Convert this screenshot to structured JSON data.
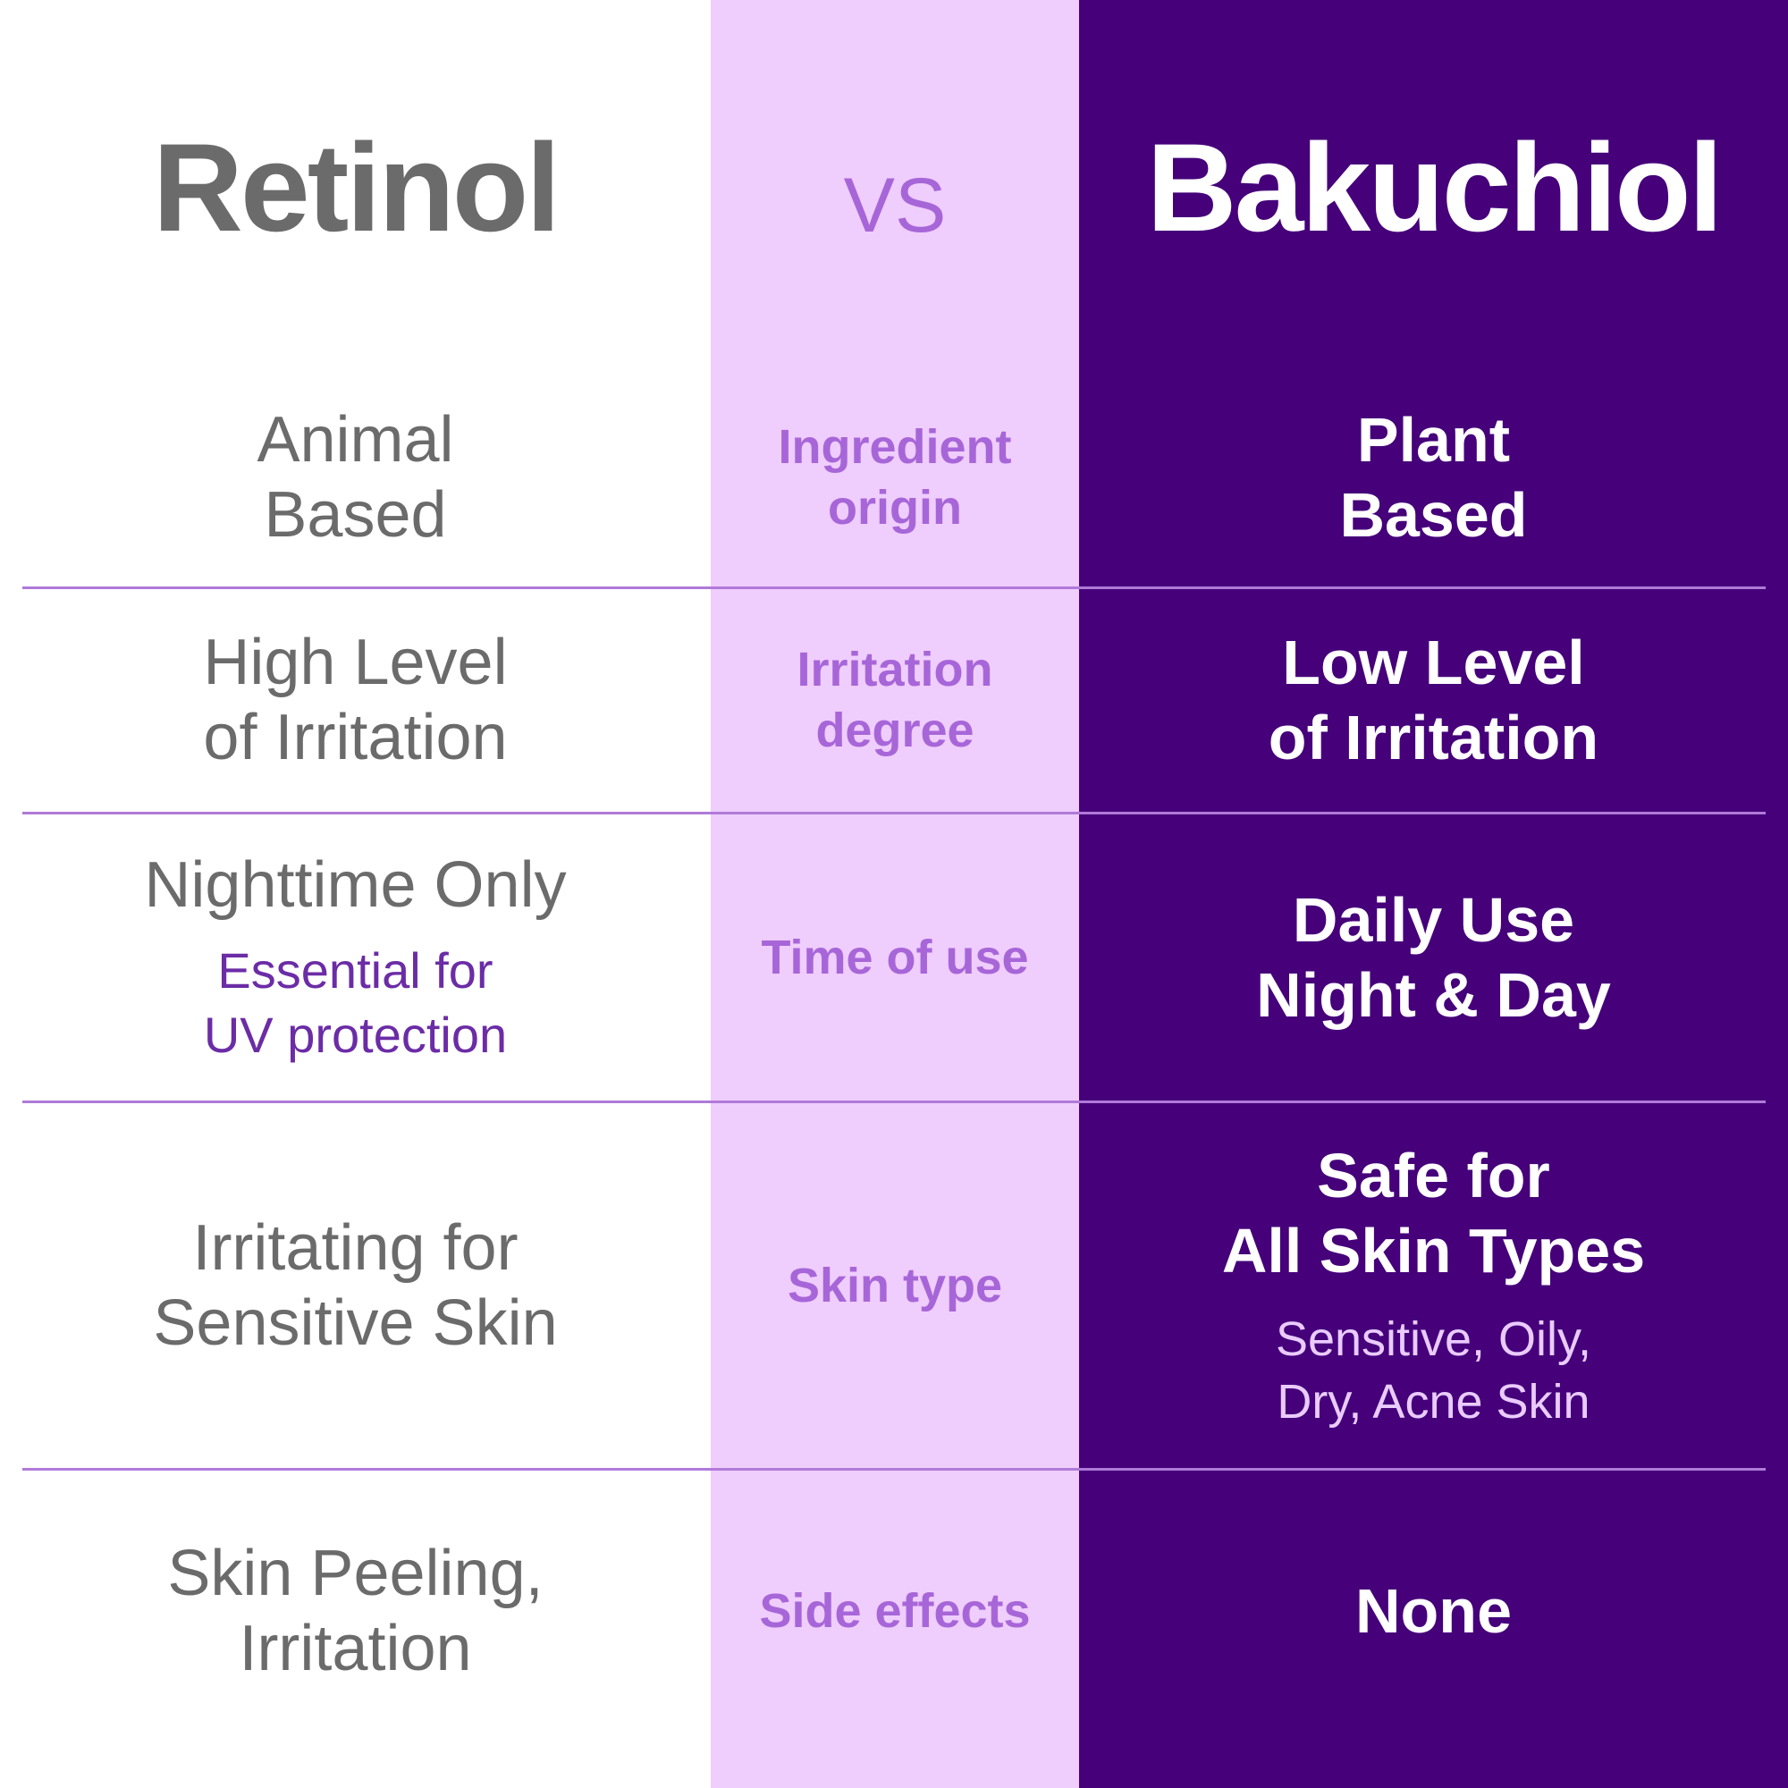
{
  "header": {
    "left": "Retinol",
    "middle": "VS",
    "right": "Bakuchiol"
  },
  "colors": {
    "purple": "#45007a",
    "pink": "#efcdfd",
    "label": "#a766d8",
    "grey_text": "#6b6b6b"
  },
  "rows": [
    {
      "left": [
        "Animal",
        "Based"
      ],
      "left_sub": [],
      "middle": [
        "Ingredient",
        "origin"
      ],
      "right": [
        "Plant",
        "Based"
      ],
      "right_sub": []
    },
    {
      "left": [
        "High Level",
        "of Irritation"
      ],
      "left_sub": [],
      "middle": [
        "Irritation",
        "degree"
      ],
      "right": [
        "Low Level",
        "of Irritation"
      ],
      "right_sub": []
    },
    {
      "left": [
        "Nighttime Only"
      ],
      "left_sub": [
        "Essential for",
        "UV protection"
      ],
      "middle": [
        "Time of use"
      ],
      "right": [
        "Daily Use",
        "Night & Day"
      ],
      "right_sub": []
    },
    {
      "left": [
        "Irritating for",
        "Sensitive Skin"
      ],
      "left_sub": [],
      "middle": [
        "Skin type"
      ],
      "right": [
        "Safe for",
        "All Skin Types"
      ],
      "right_sub": [
        "Sensitive, Oily,",
        "Dry, Acne Skin"
      ]
    },
    {
      "left": [
        "Skin Peeling,",
        "Irritation"
      ],
      "left_sub": [],
      "middle": [
        "Side effects"
      ],
      "right": [
        "None"
      ],
      "right_sub": []
    }
  ]
}
